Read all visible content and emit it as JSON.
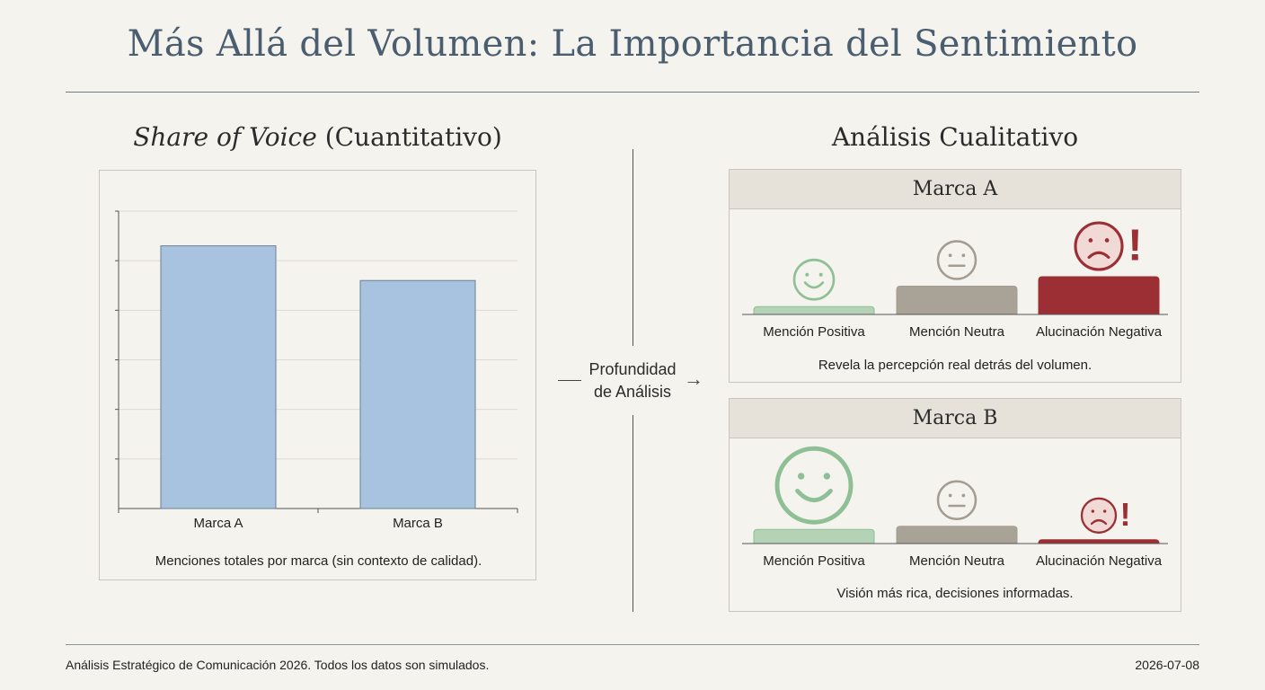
{
  "title": "Más Allá del Volumen: La Importancia del Sentimiento",
  "left_heading": {
    "italic": "Share of Voice",
    "rest": " (Cuantitativo)"
  },
  "right_heading": "Análisis Cualitativo",
  "connector": {
    "line1": "Profundidad",
    "line2": "de Análisis"
  },
  "colors": {
    "bar": "#a7c3e0",
    "bar_border": "#6d7f93",
    "positive": "#b4d3b6",
    "positive_stroke": "#8fbf95",
    "neutral": "#a9a297",
    "neutral_stroke": "#a39c92",
    "negative": "#9b2f34",
    "negative_stroke": "#9b2f34"
  },
  "chart_data": [
    {
      "type": "bar",
      "categories": [
        "Marca A",
        "Marca B"
      ],
      "values": [
        5.3,
        4.6
      ],
      "ylim": [
        0,
        6
      ],
      "grid": true,
      "caption": "Menciones totales por marca (sin contexto de calidad)."
    },
    {
      "type": "bar",
      "brand": "Marca A",
      "categories": [
        "Mención Positiva",
        "Mención Neutra",
        "Alucinación Negativa"
      ],
      "values": [
        0.25,
        0.9,
        1.2
      ],
      "caption": "Revela la percepción real detrás del volumen."
    },
    {
      "type": "bar",
      "brand": "Marca B",
      "categories": [
        "Mención Positiva",
        "Mención Neutra",
        "Alucinación Negativa"
      ],
      "values": [
        0.45,
        0.55,
        0.12
      ],
      "caption": "Visión más rica, decisiones informadas."
    }
  ],
  "footer": {
    "left": "Análisis Estratégico de Comunicación 2026. Todos los datos son simulados.",
    "right": "2026-07-08"
  }
}
